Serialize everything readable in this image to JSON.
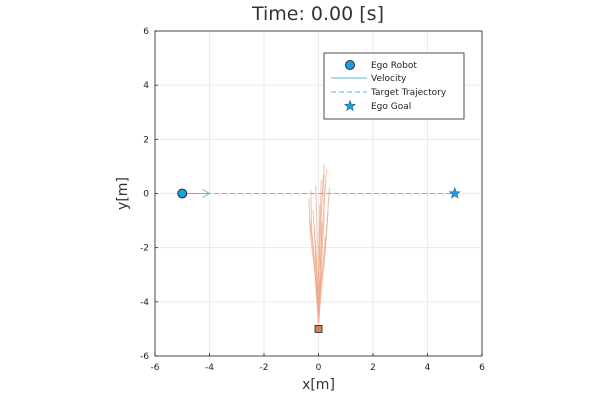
{
  "chart_data": {
    "type": "scatter",
    "title": "Time: 0.00 [s]",
    "xlabel": "x[m]",
    "ylabel": "y[m]",
    "xlim": [
      -6,
      6
    ],
    "ylim": [
      -6,
      6
    ],
    "xticks": [
      "-6",
      "-4",
      "-2",
      "0",
      "2",
      "4",
      "6"
    ],
    "yticks": [
      "-6",
      "-4",
      "-2",
      "0",
      "2",
      "4",
      "6"
    ],
    "grid": true,
    "legend_position": "top-right",
    "colors": {
      "ego": "#1f9bde",
      "trajectory": "#5fb8e8",
      "obstacle": "#e07b54",
      "obstacle_fan": "#eda98c"
    },
    "legend": [
      {
        "label": "Ego Robot",
        "marker": "circle"
      },
      {
        "label": "Velocity",
        "marker": "line"
      },
      {
        "label": "Target Trajectory",
        "marker": "dashed-line"
      },
      {
        "label": "Ego Goal",
        "marker": "star"
      }
    ],
    "series": [
      {
        "name": "Ego Robot",
        "x": [
          -5
        ],
        "y": [
          0
        ]
      },
      {
        "name": "Velocity",
        "x": [
          -5,
          -4
        ],
        "y": [
          0,
          0
        ]
      },
      {
        "name": "Target Trajectory",
        "x": [
          -5,
          5
        ],
        "y": [
          0,
          0
        ]
      },
      {
        "name": "Ego Goal",
        "x": [
          5
        ],
        "y": [
          0
        ]
      }
    ],
    "obstacle": {
      "x": 0,
      "y": -5
    },
    "obstacle_samples": [
      [
        [
          0,
          -4.8
        ],
        [
          -0.1,
          -3.2
        ],
        [
          -0.3,
          -1.5
        ],
        [
          -0.35,
          -0.2
        ]
      ],
      [
        [
          0,
          -4.8
        ],
        [
          0.05,
          -3.0
        ],
        [
          0.15,
          -1.2
        ],
        [
          0.3,
          0.9
        ]
      ],
      [
        [
          0,
          -4.8
        ],
        [
          -0.05,
          -3.3
        ],
        [
          -0.12,
          -1.8
        ],
        [
          -0.2,
          -0.6
        ]
      ],
      [
        [
          0,
          -4.8
        ],
        [
          0.08,
          -3.1
        ],
        [
          0.2,
          -1.0
        ],
        [
          0.2,
          1.1
        ]
      ],
      [
        [
          0,
          -4.8
        ],
        [
          -0.02,
          -3.4
        ],
        [
          0.02,
          -1.9
        ],
        [
          0.05,
          -0.4
        ]
      ],
      [
        [
          0,
          -4.8
        ],
        [
          0.1,
          -3.2
        ],
        [
          0.28,
          -1.6
        ],
        [
          0.4,
          0.2
        ]
      ],
      [
        [
          0,
          -4.8
        ],
        [
          -0.08,
          -3.0
        ],
        [
          -0.25,
          -1.4
        ],
        [
          -0.28,
          0.1
        ]
      ],
      [
        [
          0,
          -4.8
        ],
        [
          0.03,
          -3.5
        ],
        [
          0.1,
          -2.2
        ],
        [
          0.12,
          -1.0
        ]
      ],
      [
        [
          0,
          -4.8
        ],
        [
          -0.04,
          -3.6
        ],
        [
          -0.1,
          -2.4
        ],
        [
          -0.15,
          -1.3
        ]
      ],
      [
        [
          0,
          -4.8
        ],
        [
          0.06,
          -3.3
        ],
        [
          0.05,
          -1.7
        ],
        [
          0.1,
          0.5
        ]
      ],
      [
        [
          0,
          -4.8
        ],
        [
          -0.1,
          -3.4
        ],
        [
          -0.2,
          -2.0
        ],
        [
          -0.32,
          -0.9
        ]
      ],
      [
        [
          0,
          -4.8
        ],
        [
          0.12,
          -3.4
        ],
        [
          0.25,
          -2.1
        ],
        [
          0.35,
          -0.7
        ]
      ],
      [
        [
          0,
          -4.8
        ],
        [
          0.0,
          -3.0
        ],
        [
          0.08,
          -1.3
        ],
        [
          0.18,
          0.7
        ]
      ],
      [
        [
          0,
          -4.8
        ],
        [
          -0.06,
          -3.1
        ],
        [
          -0.05,
          -1.6
        ],
        [
          -0.1,
          0.3
        ]
      ],
      [
        [
          0,
          -4.8
        ],
        [
          0.04,
          -3.7
        ],
        [
          0.18,
          -2.6
        ],
        [
          0.25,
          -1.6
        ]
      ]
    ]
  }
}
